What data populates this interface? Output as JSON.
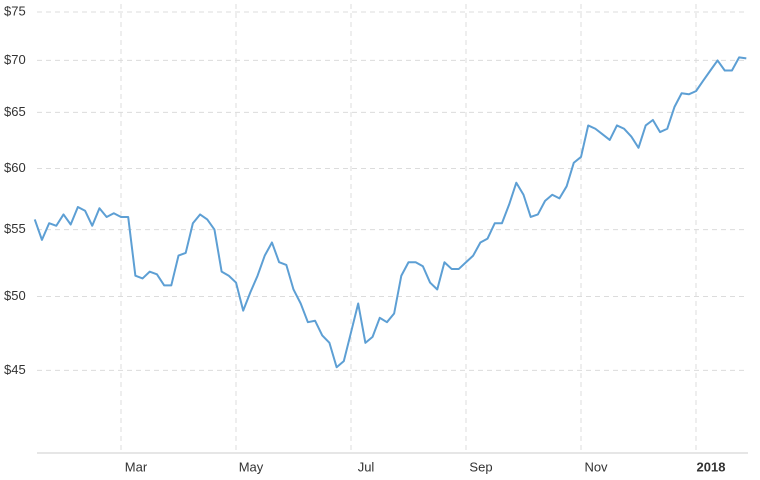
{
  "chart_data": {
    "type": "line",
    "categories": [
      null,
      null,
      null,
      null,
      null,
      null,
      null,
      null,
      null,
      null,
      null,
      null,
      "Mar",
      null,
      null,
      null,
      null,
      null,
      null,
      null,
      null,
      null,
      null,
      null,
      null,
      null,
      null,
      null,
      "May",
      null,
      null,
      null,
      null,
      null,
      null,
      null,
      null,
      null,
      null,
      null,
      null,
      null,
      null,
      null,
      "Jul",
      null,
      null,
      null,
      null,
      null,
      null,
      null,
      null,
      null,
      null,
      null,
      null,
      null,
      null,
      null,
      "Sep",
      null,
      null,
      null,
      null,
      null,
      null,
      null,
      null,
      null,
      null,
      null,
      null,
      null,
      null,
      null,
      "Nov",
      null,
      null,
      null,
      null,
      null,
      null,
      null,
      null,
      null,
      null,
      null,
      null,
      null,
      null,
      null,
      "2018",
      null,
      null,
      null,
      null,
      null,
      null,
      null
    ],
    "values": [
      55.8,
      54.2,
      55.5,
      55.3,
      56.2,
      55.4,
      56.8,
      56.5,
      55.3,
      56.7,
      56.0,
      56.3,
      56.0,
      56.0,
      51.5,
      51.3,
      51.8,
      51.6,
      50.8,
      50.8,
      53.0,
      53.2,
      55.5,
      56.2,
      55.8,
      55.0,
      51.8,
      51.5,
      51.0,
      49.0,
      50.3,
      51.5,
      53.0,
      54.0,
      52.5,
      52.3,
      50.5,
      49.5,
      48.2,
      48.3,
      47.3,
      46.8,
      45.2,
      45.6,
      47.5,
      49.5,
      46.8,
      47.2,
      48.5,
      48.2,
      48.8,
      51.5,
      52.5,
      52.5,
      52.2,
      51.0,
      50.5,
      52.5,
      52.0,
      52.0,
      52.5,
      53.0,
      54.0,
      54.3,
      55.5,
      55.5,
      57.0,
      58.8,
      57.8,
      56.0,
      56.2,
      57.3,
      57.8,
      57.5,
      58.5,
      60.5,
      61.0,
      63.8,
      63.5,
      63.0,
      62.5,
      63.8,
      63.5,
      62.8,
      61.8,
      63.8,
      64.3,
      63.2,
      63.5,
      65.5,
      66.8,
      66.7,
      67.0,
      68.0,
      69.0,
      70.0,
      69.0,
      69.0,
      70.3,
      70.2
    ],
    "color": "#5d9fd4",
    "ylim": [
      40,
      75
    ],
    "yticks": [
      {
        "value": 45,
        "label": "$45"
      },
      {
        "value": 50,
        "label": "$50"
      },
      {
        "value": 55,
        "label": "$55"
      },
      {
        "value": 60,
        "label": "$60"
      },
      {
        "value": 65,
        "label": "$65"
      },
      {
        "value": 70,
        "label": "$70"
      },
      {
        "value": 75,
        "label": "$75"
      }
    ],
    "log_y": true,
    "grid": true
  }
}
